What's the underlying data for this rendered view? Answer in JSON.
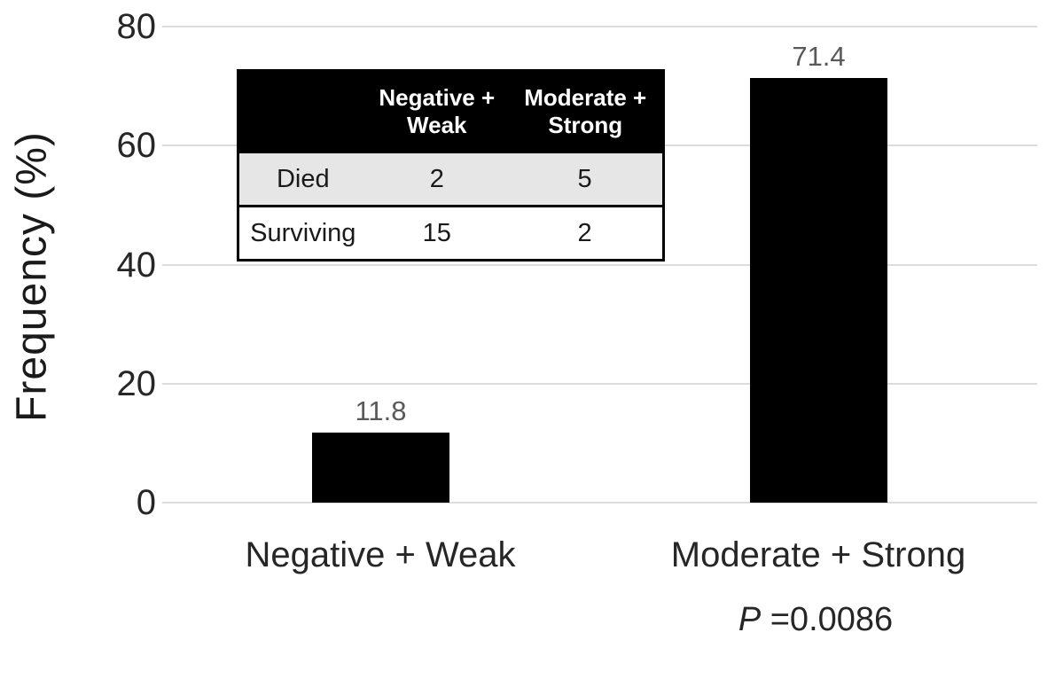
{
  "chart_data": {
    "type": "bar",
    "title": "",
    "categories": [
      "Negative + Weak",
      "Moderate + Strong"
    ],
    "values": [
      11.8,
      71.4
    ],
    "value_labels": [
      "11.8",
      "71.4"
    ],
    "xlabel": "",
    "ylabel": "Frequency (%)",
    "ylim": [
      0,
      80
    ],
    "yticks": [
      "0",
      "20",
      "40",
      "60",
      "80"
    ],
    "grid": "horizontal-light-gray",
    "bar_color": "#000000",
    "gridline_color": "#dcdcdc",
    "value_label_color": "#595959",
    "annotation_under_category_2": "P =0.0086"
  },
  "annotation": {
    "p_symbol": "P",
    "p_rest": " =0.0086"
  },
  "inset_table": {
    "header": [
      "",
      "Negative +\nWeak",
      "Moderate +\nStrong"
    ],
    "rows": [
      {
        "label": "Died",
        "values": [
          "2",
          "5"
        ]
      },
      {
        "label": "Surviving",
        "values": [
          "15",
          "2"
        ]
      }
    ],
    "header_bg": "#000000",
    "header_text_color": "#ffffff",
    "shaded_row_bg": "#e6e6e6"
  }
}
